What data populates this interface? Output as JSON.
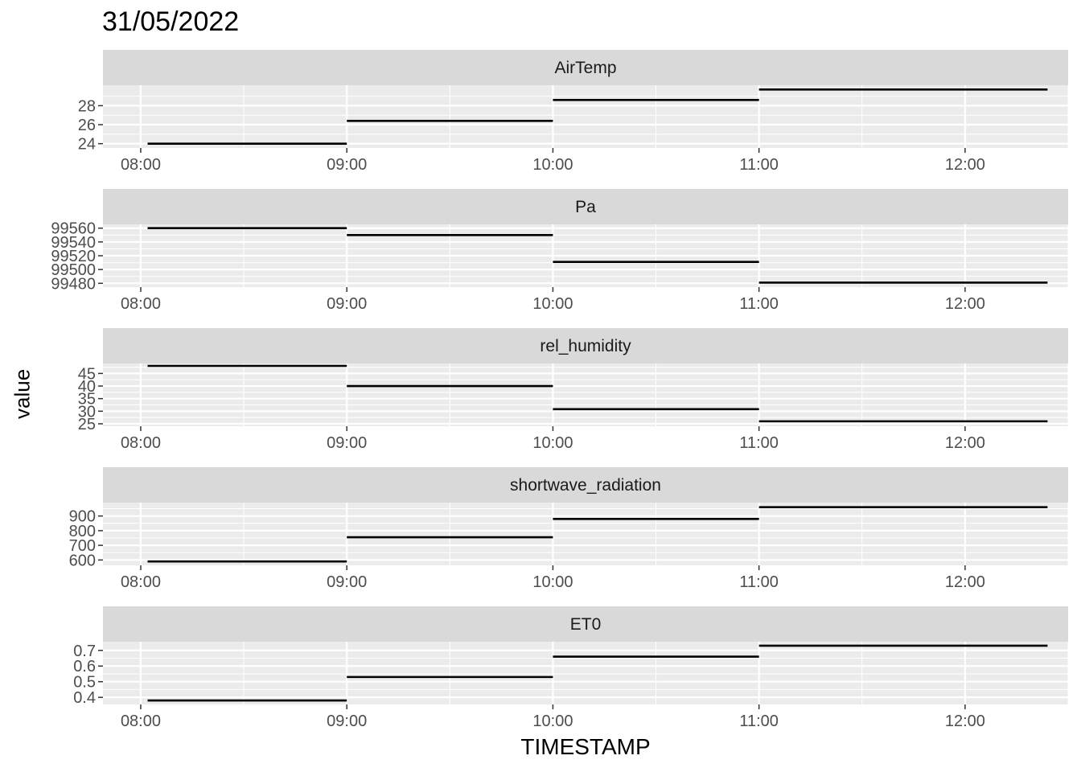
{
  "title": "31/05/2022",
  "chart_data": {
    "type": "line",
    "title": "31/05/2022",
    "xlabel": "TIMESTAMP",
    "ylabel": "value",
    "x_ticks": [
      "08:00",
      "09:00",
      "10:00",
      "11:00",
      "12:00"
    ],
    "x_range": [
      "07:49",
      "12:30"
    ],
    "grid": true,
    "panels": [
      {
        "name": "AirTemp",
        "yticks": [
          24,
          26,
          28
        ],
        "ylim": [
          23.8,
          29.9
        ],
        "segments": [
          {
            "x0": "08:02",
            "x1": "09:00",
            "value": 24.0
          },
          {
            "x0": "09:00",
            "x1": "10:00",
            "value": 26.4
          },
          {
            "x0": "10:00",
            "x1": "11:00",
            "value": 28.6
          },
          {
            "x0": "11:00",
            "x1": "12:24",
            "value": 29.7
          }
        ]
      },
      {
        "name": "Pa",
        "yticks": [
          99480,
          99500,
          99520,
          99540,
          99560
        ],
        "ylim": [
          99478,
          99562
        ],
        "segments": [
          {
            "x0": "08:02",
            "x1": "09:00",
            "value": 99560
          },
          {
            "x0": "09:00",
            "x1": "10:00",
            "value": 99550
          },
          {
            "x0": "10:00",
            "x1": "11:00",
            "value": 99511
          },
          {
            "x0": "11:00",
            "x1": "12:24",
            "value": 99481
          }
        ]
      },
      {
        "name": "rel_humidity",
        "yticks": [
          25,
          30,
          35,
          40,
          45
        ],
        "ylim": [
          25,
          48
        ],
        "segments": [
          {
            "x0": "08:02",
            "x1": "09:00",
            "value": 48.0
          },
          {
            "x0": "09:00",
            "x1": "10:00",
            "value": 40.0
          },
          {
            "x0": "10:00",
            "x1": "11:00",
            "value": 30.8
          },
          {
            "x0": "11:00",
            "x1": "12:24",
            "value": 26.0
          }
        ]
      },
      {
        "name": "shortwave_radiation",
        "yticks": [
          600,
          700,
          800,
          900
        ],
        "ylim": [
          580,
          975
        ],
        "segments": [
          {
            "x0": "08:02",
            "x1": "09:00",
            "value": 590
          },
          {
            "x0": "09:00",
            "x1": "10:00",
            "value": 755
          },
          {
            "x0": "10:00",
            "x1": "11:00",
            "value": 880
          },
          {
            "x0": "11:00",
            "x1": "12:24",
            "value": 960
          }
        ]
      },
      {
        "name": "ET0",
        "yticks": [
          0.4,
          0.5,
          0.6,
          0.7
        ],
        "ylim": [
          0.37,
          0.74
        ],
        "segments": [
          {
            "x0": "08:02",
            "x1": "09:00",
            "value": 0.38
          },
          {
            "x0": "09:00",
            "x1": "10:00",
            "value": 0.53
          },
          {
            "x0": "10:00",
            "x1": "11:00",
            "value": 0.66
          },
          {
            "x0": "11:00",
            "x1": "12:24",
            "value": 0.73
          }
        ]
      }
    ]
  },
  "colors": {
    "panel_background": "#ebebeb",
    "strip_background": "#d9d9d9",
    "grid": "#ffffff",
    "line": "#000000",
    "tick_text": "#4d4d4d"
  }
}
